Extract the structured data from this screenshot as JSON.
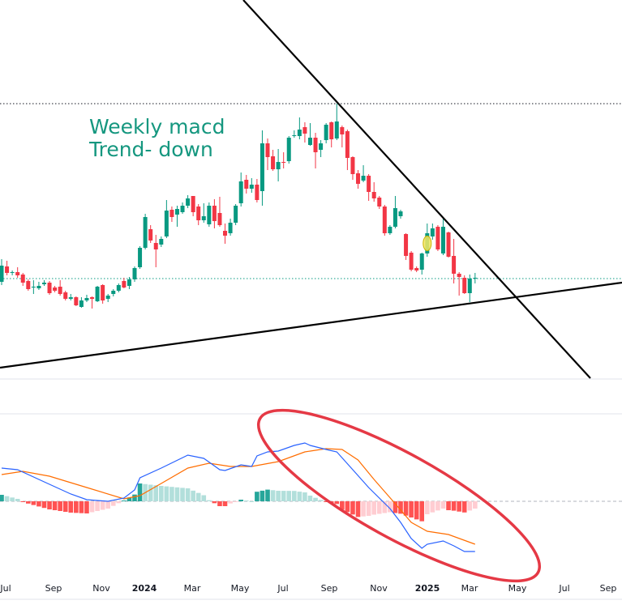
{
  "annotation": {
    "line1": "Weekly macd",
    "line2": "Trend- down"
  },
  "colors": {
    "up": "#089981",
    "down": "#f23645",
    "macd": "#2962ff",
    "signal": "#ff6d00",
    "hist_up_strong": "#26a69a",
    "hist_up_weak": "#b2dfdb",
    "hist_down_strong": "#ff5252",
    "hist_down_weak": "#ffcdd2",
    "annotation_text": "#15977f",
    "highlight_ellipse": "#e53945",
    "marker": "#f5e663"
  },
  "chart_data": [
    {
      "type": "candlestick",
      "timeframe": "weekly",
      "price_scale": "not shown",
      "x_ticks": [
        {
          "label": "Jul",
          "bold": false
        },
        {
          "label": "Sep",
          "bold": false
        },
        {
          "label": "Nov",
          "bold": false
        },
        {
          "label": "2024",
          "bold": true
        },
        {
          "label": "Mar",
          "bold": false
        },
        {
          "label": "May",
          "bold": false
        },
        {
          "label": "Jul",
          "bold": false
        },
        {
          "label": "Sep",
          "bold": false
        },
        {
          "label": "Nov",
          "bold": false
        },
        {
          "label": "2025",
          "bold": true
        },
        {
          "label": "Mar",
          "bold": false
        },
        {
          "label": "May",
          "bold": false
        },
        {
          "label": "Jul",
          "bold": false
        },
        {
          "label": "Sep",
          "bold": false
        }
      ],
      "ohlc": [
        [
          152,
          172,
          180,
          148
        ],
        [
          171,
          163,
          178,
          160
        ],
        [
          163,
          164,
          166,
          160
        ],
        [
          164,
          160,
          170,
          157
        ],
        [
          161,
          151,
          163,
          147
        ],
        [
          153,
          143,
          155,
          141
        ],
        [
          145,
          146,
          154,
          137
        ],
        [
          144,
          147,
          152,
          142
        ],
        [
          149,
          151,
          154,
          147
        ],
        [
          151,
          138,
          153,
          136
        ],
        [
          145,
          141,
          147,
          139
        ],
        [
          146,
          137,
          154,
          135
        ],
        [
          139,
          131,
          141,
          129
        ],
        [
          131,
          133,
          137,
          129
        ],
        [
          133,
          123,
          134,
          122
        ],
        [
          121,
          129,
          133,
          120
        ],
        [
          129,
          132,
          136,
          127
        ],
        [
          133,
          131,
          134,
          119
        ],
        [
          128,
          146,
          147,
          127
        ],
        [
          148,
          129,
          149,
          125
        ],
        [
          131,
          135,
          137,
          127
        ],
        [
          137,
          141,
          143,
          134
        ],
        [
          141,
          148,
          150,
          139
        ],
        [
          153,
          145,
          157,
          144
        ],
        [
          147,
          155,
          158,
          143
        ],
        [
          155,
          169,
          171,
          152
        ],
        [
          170,
          194,
          196,
          168
        ],
        [
          194,
          232,
          236,
          192
        ],
        [
          217,
          203,
          222,
          200
        ],
        [
          200,
          192,
          210,
          170
        ],
        [
          198,
          205,
          208,
          195
        ],
        [
          208,
          240,
          253,
          206
        ],
        [
          241,
          232,
          245,
          226
        ],
        [
          235,
          242,
          246,
          220
        ],
        [
          238,
          246,
          250,
          236
        ],
        [
          246,
          255,
          259,
          243
        ],
        [
          258,
          238,
          258,
          233
        ],
        [
          245,
          228,
          248,
          222
        ],
        [
          228,
          233,
          249,
          225
        ],
        [
          223,
          246,
          250,
          220
        ],
        [
          246,
          227,
          254,
          218
        ],
        [
          237,
          222,
          257,
          220
        ],
        [
          215,
          209,
          224,
          199
        ],
        [
          212,
          225,
          230,
          209
        ],
        [
          225,
          246,
          248,
          222
        ],
        [
          249,
          276,
          287,
          245
        ],
        [
          278,
          267,
          284,
          261
        ],
        [
          267,
          272,
          280,
          262
        ],
        [
          272,
          253,
          279,
          250
        ],
        [
          264,
          323,
          339,
          246
        ],
        [
          323,
          306,
          329,
          290
        ],
        [
          307,
          291,
          315,
          289
        ],
        [
          291,
          300,
          316,
          276
        ],
        [
          300,
          299,
          312,
          292
        ],
        [
          301,
          330,
          332,
          298
        ],
        [
          332,
          333,
          339,
          330
        ],
        [
          332,
          340,
          355,
          328
        ],
        [
          343,
          335,
          349,
          324
        ],
        [
          321,
          330,
          348,
          320
        ],
        [
          330,
          312,
          336,
          292
        ],
        [
          315,
          323,
          327,
          306
        ],
        [
          327,
          346,
          348,
          323
        ],
        [
          349,
          328,
          350,
          318
        ],
        [
          329,
          350,
          372,
          327
        ],
        [
          343,
          334,
          345,
          318
        ],
        [
          338,
          305,
          340,
          290
        ],
        [
          306,
          285,
          307,
          278
        ],
        [
          286,
          273,
          290,
          267
        ],
        [
          277,
          283,
          296,
          275
        ],
        [
          283,
          263,
          285,
          252
        ],
        [
          263,
          255,
          275,
          251
        ],
        [
          256,
          245,
          258,
          242
        ],
        [
          245,
          212,
          247,
          209
        ],
        [
          212,
          220,
          222,
          210
        ],
        [
          220,
          243,
          258,
          218
        ],
        [
          233,
          239,
          241,
          230
        ],
        [
          211,
          184,
          212,
          179
        ],
        [
          188,
          167,
          190,
          165
        ],
        [
          169,
          166,
          171,
          164
        ],
        [
          167,
          187,
          188,
          161
        ],
        [
          187,
          212,
          224,
          183
        ],
        [
          208,
          218,
          224,
          204
        ],
        [
          220,
          192,
          222,
          190
        ],
        [
          187,
          220,
          230,
          185
        ],
        [
          213,
          183,
          214,
          182
        ],
        [
          184,
          162,
          205,
          150
        ],
        [
          162,
          158,
          164,
          135
        ],
        [
          157,
          138,
          160,
          137
        ],
        [
          138,
          156,
          161,
          127
        ],
        [
          156,
          157,
          163,
          150
        ]
      ],
      "marked_candle_index": 80,
      "horizontal_levels": [
        {
          "price": 372,
          "style": "dotted",
          "color": "#131722"
        },
        {
          "price": 156,
          "style": "dotted",
          "color": "#089981"
        }
      ],
      "trendlines": [
        {
          "name": "descending resistance",
          "color": "#000000"
        },
        {
          "name": "ascending support",
          "color": "#000000"
        }
      ]
    },
    {
      "type": "line+histogram",
      "indicator": "MACD",
      "zero_line": 0,
      "macd": [
        [
          0,
          4.1
        ],
        [
          3,
          3.9
        ],
        [
          9,
          2.1
        ],
        [
          13,
          0.9
        ],
        [
          16,
          0.2
        ],
        [
          20,
          0
        ],
        [
          23,
          0.4
        ],
        [
          25,
          1.4
        ],
        [
          26,
          2.9
        ],
        [
          30,
          4.1
        ],
        [
          35,
          5.7
        ],
        [
          38,
          5.3
        ],
        [
          41,
          3.9
        ],
        [
          42,
          3.8
        ],
        [
          45,
          4.5
        ],
        [
          47,
          4.3
        ],
        [
          48,
          5.6
        ],
        [
          50,
          6.1
        ],
        [
          52,
          6.2
        ],
        [
          55,
          6.9
        ],
        [
          57,
          7.2
        ],
        [
          58,
          6.9
        ],
        [
          61,
          6.4
        ],
        [
          63,
          6.1
        ],
        [
          66,
          3.9
        ],
        [
          69,
          1.7
        ],
        [
          73,
          -0.9
        ],
        [
          75,
          -2.6
        ],
        [
          77,
          -4.6
        ],
        [
          79,
          -5.8
        ],
        [
          80,
          -5.3
        ],
        [
          83,
          -4.9
        ],
        [
          85,
          -5.5
        ],
        [
          87,
          -6.2
        ],
        [
          89,
          -6.2
        ]
      ],
      "signal": [
        [
          0,
          3.3
        ],
        [
          4,
          3.7
        ],
        [
          9,
          3.1
        ],
        [
          16,
          1.7
        ],
        [
          23,
          0.3
        ],
        [
          26,
          0.7
        ],
        [
          30,
          2.2
        ],
        [
          35,
          4.1
        ],
        [
          39,
          4.7
        ],
        [
          43,
          4.3
        ],
        [
          47,
          4.3
        ],
        [
          52,
          4.9
        ],
        [
          57,
          6.1
        ],
        [
          61,
          6.5
        ],
        [
          64,
          6.4
        ],
        [
          67,
          5.1
        ],
        [
          70,
          2.7
        ],
        [
          74,
          -0.3
        ],
        [
          77,
          -2.6
        ],
        [
          80,
          -3.7
        ],
        [
          84,
          -4.1
        ],
        [
          89,
          -5.3
        ]
      ]
    }
  ]
}
